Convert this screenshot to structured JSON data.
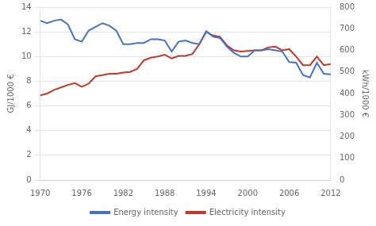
{
  "chart_data": {
    "type": "line",
    "ylabel": "GJ/1000 €",
    "y2label": "kWh/1000 €",
    "x": [
      1970,
      1971,
      1972,
      1973,
      1974,
      1975,
      1976,
      1977,
      1978,
      1979,
      1980,
      1981,
      1982,
      1983,
      1984,
      1985,
      1986,
      1987,
      1988,
      1989,
      1990,
      1991,
      1992,
      1993,
      1994,
      1995,
      1996,
      1997,
      1998,
      1999,
      2000,
      2001,
      2002,
      2003,
      2004,
      2005,
      2006,
      2007,
      2008,
      2009,
      2010,
      2011,
      2012
    ],
    "series": [
      {
        "name": "Energy intensity",
        "color": "#4472c4",
        "values": [
          12.9,
          12.7,
          12.9,
          13.0,
          12.6,
          11.4,
          11.2,
          12.1,
          12.4,
          12.7,
          12.5,
          12.1,
          11.0,
          11.0,
          11.1,
          11.1,
          11.4,
          11.4,
          11.3,
          10.4,
          11.2,
          11.3,
          11.1,
          11.0,
          12.05,
          11.6,
          11.5,
          10.8,
          10.3,
          10.0,
          10.0,
          10.5,
          10.5,
          10.6,
          10.5,
          10.4,
          9.55,
          9.5,
          8.5,
          8.3,
          9.5,
          8.6,
          8.55
        ]
      },
      {
        "name": "Electricity intensity",
        "color": "#c0392b",
        "values": [
          6.85,
          7.0,
          7.3,
          7.5,
          7.7,
          7.85,
          7.55,
          7.8,
          8.4,
          8.5,
          8.6,
          8.6,
          8.7,
          8.75,
          9.0,
          9.7,
          9.9,
          10.0,
          10.15,
          9.85,
          10.05,
          10.05,
          10.2,
          11.0,
          12.0,
          11.7,
          11.6,
          10.9,
          10.5,
          10.4,
          10.45,
          10.5,
          10.5,
          10.75,
          10.8,
          10.5,
          10.6,
          10.0,
          9.3,
          9.3,
          10.0,
          9.3,
          9.4
        ]
      }
    ],
    "xlim": [
      1970,
      2012
    ],
    "xticks": [
      1970,
      1976,
      1982,
      1988,
      1994,
      2000,
      2006,
      2012
    ],
    "ylim": [
      0,
      14
    ],
    "yticks": [
      0,
      2,
      4,
      6,
      8,
      10,
      12,
      14
    ],
    "y2lim": [
      0,
      800
    ],
    "y2ticks": [
      0,
      100,
      200,
      300,
      400,
      500,
      600,
      700,
      800
    ],
    "grid": true,
    "legend": "bottom"
  }
}
